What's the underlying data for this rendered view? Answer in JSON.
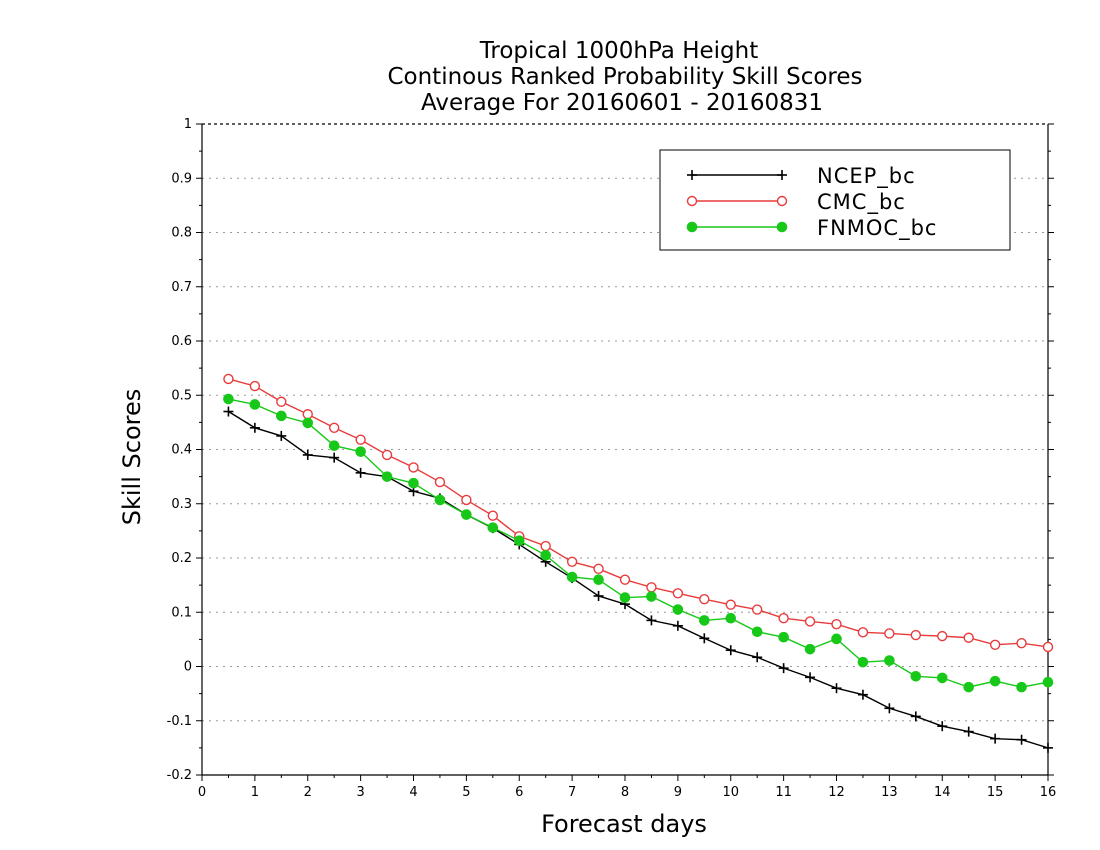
{
  "chart_data": {
    "type": "line",
    "title_lines": [
      "Tropical 1000hPa Height",
      "Continous Ranked Probability Skill Scores",
      "Average For 20160601 - 20160831"
    ],
    "xlabel": "Forecast days",
    "ylabel": "Skill Scores",
    "xlim": [
      0,
      16
    ],
    "ylim": [
      -0.2,
      1
    ],
    "xticks": [
      "0",
      "1",
      "2",
      "3",
      "4",
      "5",
      "6",
      "7",
      "8",
      "9",
      "10",
      "11",
      "12",
      "13",
      "14",
      "15",
      "16"
    ],
    "yticks": [
      "-0.2",
      "-0.1",
      "0",
      "0.1",
      "0.2",
      "0.3",
      "0.4",
      "0.5",
      "0.6",
      "0.7",
      "0.8",
      "0.9",
      "1"
    ],
    "grid": "horizontal-dotted",
    "legend_position": "top-right",
    "x": [
      0.5,
      1,
      1.5,
      2,
      2.5,
      3,
      3.5,
      4,
      4.5,
      5,
      5.5,
      6,
      6.5,
      7,
      7.5,
      8,
      8.5,
      9,
      9.5,
      10,
      10.5,
      11,
      11.5,
      12,
      12.5,
      13,
      13.5,
      14,
      14.5,
      15,
      15.5,
      16
    ],
    "series": [
      {
        "name": "NCEP_bc",
        "color": "#000000",
        "marker": "plus",
        "values": [
          0.47,
          0.44,
          0.425,
          0.39,
          0.385,
          0.357,
          0.35,
          0.323,
          0.31,
          0.28,
          0.255,
          0.225,
          0.193,
          0.163,
          0.13,
          0.115,
          0.085,
          0.075,
          0.052,
          0.03,
          0.017,
          -0.003,
          -0.02,
          -0.04,
          -0.052,
          -0.077,
          -0.092,
          -0.11,
          -0.12,
          -0.133,
          -0.135,
          -0.15
        ]
      },
      {
        "name": "CMC_bc",
        "color": "#e83c3c",
        "marker": "open-circle",
        "values": [
          0.53,
          0.517,
          0.488,
          0.465,
          0.44,
          0.418,
          0.39,
          0.367,
          0.34,
          0.307,
          0.278,
          0.24,
          0.222,
          0.193,
          0.18,
          0.16,
          0.146,
          0.135,
          0.124,
          0.114,
          0.105,
          0.089,
          0.083,
          0.078,
          0.063,
          0.061,
          0.058,
          0.056,
          0.053,
          0.04,
          0.043,
          0.036
        ]
      },
      {
        "name": "FNMOC_bc",
        "color": "#18c818",
        "marker": "filled-circle",
        "values": [
          0.493,
          0.483,
          0.462,
          0.449,
          0.407,
          0.396,
          0.35,
          0.338,
          0.307,
          0.28,
          0.256,
          0.232,
          0.205,
          0.165,
          0.16,
          0.127,
          0.129,
          0.105,
          0.085,
          0.089,
          0.064,
          0.054,
          0.032,
          0.051,
          0.008,
          0.011,
          -0.018,
          -0.021,
          -0.038,
          -0.027,
          -0.038,
          -0.029
        ]
      }
    ]
  }
}
